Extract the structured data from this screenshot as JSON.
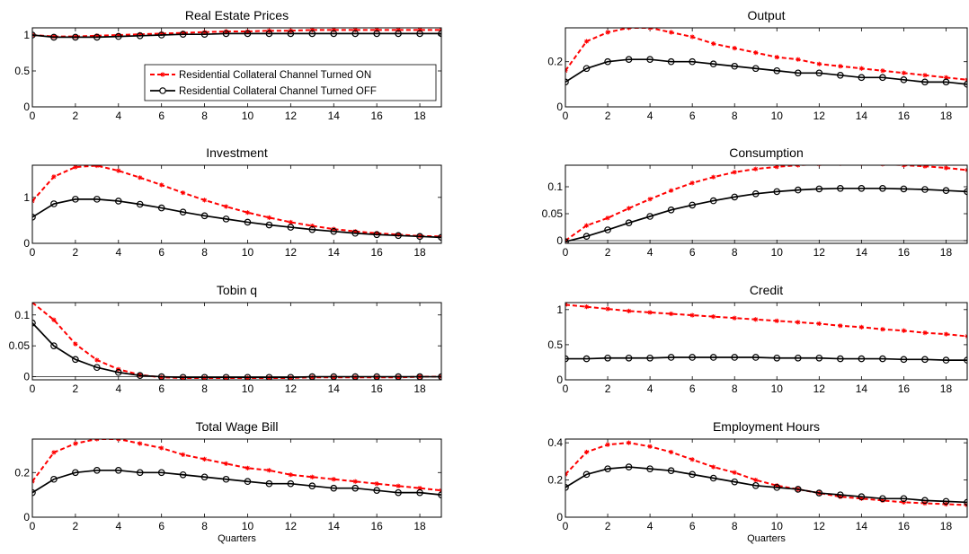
{
  "legend": {
    "on_label": "Residential Collateral Channel Turned ON",
    "off_label": "Residential Collateral Channel Turned OFF"
  },
  "colors": {
    "on": "#ff0000",
    "off": "#000000"
  },
  "chart_data": [
    {
      "type": "line",
      "title": "Real Estate Prices",
      "xlabel": "",
      "x": [
        0,
        1,
        2,
        3,
        4,
        5,
        6,
        7,
        8,
        9,
        10,
        11,
        12,
        13,
        14,
        15,
        16,
        17,
        18,
        19
      ],
      "xlim": [
        0,
        19
      ],
      "ylim": [
        0,
        1.1
      ],
      "xticks": [
        0,
        2,
        4,
        6,
        8,
        10,
        12,
        14,
        16,
        18
      ],
      "yticks": [
        0,
        0.5,
        1
      ],
      "ytick_labels": [
        "0",
        "0.5",
        "1"
      ],
      "legend": "inside bottom-right",
      "series": [
        {
          "name": "Residential Collateral Channel Turned ON",
          "style": "dashed-star",
          "values": [
            1.0,
            0.98,
            0.98,
            0.99,
            1.0,
            1.01,
            1.02,
            1.03,
            1.04,
            1.05,
            1.05,
            1.06,
            1.06,
            1.07,
            1.07,
            1.07,
            1.07,
            1.07,
            1.07,
            1.07
          ]
        },
        {
          "name": "Residential Collateral Channel Turned OFF",
          "style": "solid-circle",
          "values": [
            1.0,
            0.97,
            0.97,
            0.97,
            0.98,
            0.99,
            1.0,
            1.01,
            1.01,
            1.02,
            1.02,
            1.02,
            1.02,
            1.02,
            1.02,
            1.02,
            1.02,
            1.02,
            1.02,
            1.02
          ]
        }
      ]
    },
    {
      "type": "line",
      "title": "Output",
      "xlabel": "",
      "x": [
        0,
        1,
        2,
        3,
        4,
        5,
        6,
        7,
        8,
        9,
        10,
        11,
        12,
        13,
        14,
        15,
        16,
        17,
        18,
        19
      ],
      "xlim": [
        0,
        19
      ],
      "ylim": [
        0,
        0.35
      ],
      "xticks": [
        0,
        2,
        4,
        6,
        8,
        10,
        12,
        14,
        16,
        18
      ],
      "yticks": [
        0,
        0.2
      ],
      "ytick_labels": [
        "0",
        "0.2"
      ],
      "series": [
        {
          "name": "Residential Collateral Channel Turned ON",
          "style": "dashed-star",
          "values": [
            0.16,
            0.29,
            0.33,
            0.35,
            0.35,
            0.33,
            0.31,
            0.28,
            0.26,
            0.24,
            0.22,
            0.21,
            0.19,
            0.18,
            0.17,
            0.16,
            0.15,
            0.14,
            0.13,
            0.12
          ]
        },
        {
          "name": "Residential Collateral Channel Turned OFF",
          "style": "solid-circle",
          "values": [
            0.11,
            0.17,
            0.2,
            0.21,
            0.21,
            0.2,
            0.2,
            0.19,
            0.18,
            0.17,
            0.16,
            0.15,
            0.15,
            0.14,
            0.13,
            0.13,
            0.12,
            0.11,
            0.11,
            0.1
          ]
        }
      ]
    },
    {
      "type": "line",
      "title": "Investment",
      "xlabel": "",
      "x": [
        0,
        1,
        2,
        3,
        4,
        5,
        6,
        7,
        8,
        9,
        10,
        11,
        12,
        13,
        14,
        15,
        16,
        17,
        18,
        19
      ],
      "xlim": [
        0,
        19
      ],
      "ylim": [
        0,
        1.7
      ],
      "xticks": [
        0,
        2,
        4,
        6,
        8,
        10,
        12,
        14,
        16,
        18
      ],
      "yticks": [
        0,
        1
      ],
      "ytick_labels": [
        "0",
        "1"
      ],
      "series": [
        {
          "name": "Residential Collateral Channel Turned ON",
          "style": "dashed-star",
          "values": [
            0.92,
            1.45,
            1.66,
            1.69,
            1.58,
            1.43,
            1.27,
            1.1,
            0.94,
            0.8,
            0.67,
            0.56,
            0.46,
            0.38,
            0.31,
            0.26,
            0.22,
            0.19,
            0.16,
            0.15
          ]
        },
        {
          "name": "Residential Collateral Channel Turned OFF",
          "style": "solid-circle",
          "values": [
            0.57,
            0.86,
            0.96,
            0.96,
            0.92,
            0.85,
            0.77,
            0.68,
            0.6,
            0.53,
            0.46,
            0.4,
            0.35,
            0.3,
            0.26,
            0.22,
            0.19,
            0.17,
            0.15,
            0.13
          ]
        }
      ]
    },
    {
      "type": "line",
      "title": "Consumption",
      "xlabel": "",
      "x": [
        0,
        1,
        2,
        3,
        4,
        5,
        6,
        7,
        8,
        9,
        10,
        11,
        12,
        13,
        14,
        15,
        16,
        17,
        18,
        19
      ],
      "xlim": [
        0,
        19
      ],
      "ylim": [
        -0.005,
        0.14
      ],
      "xticks": [
        0,
        2,
        4,
        6,
        8,
        10,
        12,
        14,
        16,
        18
      ],
      "yticks": [
        0,
        0.05,
        0.1
      ],
      "ytick_labels": [
        "0",
        "0.05",
        "0.1"
      ],
      "zero_line": true,
      "series": [
        {
          "name": "Residential Collateral Channel Turned ON",
          "style": "dashed-star",
          "values": [
            0.0,
            0.028,
            0.042,
            0.06,
            0.077,
            0.093,
            0.107,
            0.118,
            0.127,
            0.133,
            0.137,
            0.14,
            0.142,
            0.143,
            0.143,
            0.142,
            0.14,
            0.138,
            0.135,
            0.131
          ]
        },
        {
          "name": "Residential Collateral Channel Turned OFF",
          "style": "solid-circle",
          "values": [
            -0.002,
            0.008,
            0.02,
            0.033,
            0.045,
            0.057,
            0.066,
            0.074,
            0.081,
            0.087,
            0.091,
            0.094,
            0.096,
            0.097,
            0.097,
            0.097,
            0.096,
            0.095,
            0.093,
            0.091
          ]
        }
      ]
    },
    {
      "type": "line",
      "title": "Tobin q",
      "xlabel": "",
      "x": [
        0,
        1,
        2,
        3,
        4,
        5,
        6,
        7,
        8,
        9,
        10,
        11,
        12,
        13,
        14,
        15,
        16,
        17,
        18,
        19
      ],
      "xlim": [
        0,
        19
      ],
      "ylim": [
        -0.005,
        0.12
      ],
      "xticks": [
        0,
        2,
        4,
        6,
        8,
        10,
        12,
        14,
        16,
        18
      ],
      "yticks": [
        0,
        0.05,
        0.1
      ],
      "ytick_labels": [
        "0",
        "0.05",
        "0.1"
      ],
      "zero_line": true,
      "series": [
        {
          "name": "Residential Collateral Channel Turned ON",
          "style": "dashed-star",
          "values": [
            0.12,
            0.092,
            0.053,
            0.027,
            0.012,
            0.003,
            -0.001,
            -0.002,
            -0.002,
            -0.002,
            -0.002,
            -0.002,
            -0.002,
            -0.001,
            -0.001,
            -0.001,
            -0.001,
            -0.001,
            0.0,
            0.0
          ]
        },
        {
          "name": "Residential Collateral Channel Turned OFF",
          "style": "solid-circle",
          "values": [
            0.087,
            0.05,
            0.028,
            0.015,
            0.007,
            0.002,
            0.0,
            -0.001,
            -0.001,
            -0.001,
            -0.001,
            -0.001,
            -0.001,
            0.0,
            0.0,
            0.0,
            0.0,
            0.0,
            0.0,
            0.0
          ]
        }
      ]
    },
    {
      "type": "line",
      "title": "Credit",
      "xlabel": "",
      "x": [
        0,
        1,
        2,
        3,
        4,
        5,
        6,
        7,
        8,
        9,
        10,
        11,
        12,
        13,
        14,
        15,
        16,
        17,
        18,
        19
      ],
      "xlim": [
        0,
        19
      ],
      "ylim": [
        0,
        1.1
      ],
      "xticks": [
        0,
        2,
        4,
        6,
        8,
        10,
        12,
        14,
        16,
        18
      ],
      "yticks": [
        0,
        0.5,
        1
      ],
      "ytick_labels": [
        "0",
        "0.5",
        "1"
      ],
      "series": [
        {
          "name": "Residential Collateral Channel Turned ON",
          "style": "dashed-star",
          "values": [
            1.07,
            1.04,
            1.01,
            0.98,
            0.96,
            0.94,
            0.92,
            0.9,
            0.88,
            0.86,
            0.84,
            0.82,
            0.8,
            0.77,
            0.75,
            0.72,
            0.7,
            0.67,
            0.65,
            0.62
          ]
        },
        {
          "name": "Residential Collateral Channel Turned OFF",
          "style": "solid-circle",
          "values": [
            0.3,
            0.3,
            0.31,
            0.31,
            0.31,
            0.32,
            0.32,
            0.32,
            0.32,
            0.32,
            0.31,
            0.31,
            0.31,
            0.3,
            0.3,
            0.3,
            0.29,
            0.29,
            0.28,
            0.28
          ]
        }
      ]
    },
    {
      "type": "line",
      "title": "Total Wage Bill",
      "xlabel": "Quarters",
      "x": [
        0,
        1,
        2,
        3,
        4,
        5,
        6,
        7,
        8,
        9,
        10,
        11,
        12,
        13,
        14,
        15,
        16,
        17,
        18,
        19
      ],
      "xlim": [
        0,
        19
      ],
      "ylim": [
        0,
        0.35
      ],
      "xticks": [
        0,
        2,
        4,
        6,
        8,
        10,
        12,
        14,
        16,
        18
      ],
      "yticks": [
        0,
        0.2
      ],
      "ytick_labels": [
        "0",
        "0.2"
      ],
      "series": [
        {
          "name": "Residential Collateral Channel Turned ON",
          "style": "dashed-star",
          "values": [
            0.16,
            0.29,
            0.33,
            0.35,
            0.35,
            0.33,
            0.31,
            0.28,
            0.26,
            0.24,
            0.22,
            0.21,
            0.19,
            0.18,
            0.17,
            0.16,
            0.15,
            0.14,
            0.13,
            0.12
          ]
        },
        {
          "name": "Residential Collateral Channel Turned OFF",
          "style": "solid-circle",
          "values": [
            0.11,
            0.17,
            0.2,
            0.21,
            0.21,
            0.2,
            0.2,
            0.19,
            0.18,
            0.17,
            0.16,
            0.15,
            0.15,
            0.14,
            0.13,
            0.13,
            0.12,
            0.11,
            0.11,
            0.1
          ]
        }
      ]
    },
    {
      "type": "line",
      "title": "Employment Hours",
      "xlabel": "Quarters",
      "x": [
        0,
        1,
        2,
        3,
        4,
        5,
        6,
        7,
        8,
        9,
        10,
        11,
        12,
        13,
        14,
        15,
        16,
        17,
        18,
        19
      ],
      "xlim": [
        0,
        19
      ],
      "ylim": [
        0,
        0.42
      ],
      "xticks": [
        0,
        2,
        4,
        6,
        8,
        10,
        12,
        14,
        16,
        18
      ],
      "yticks": [
        0,
        0.2,
        0.4
      ],
      "ytick_labels": [
        "0",
        "0.2",
        "0.4"
      ],
      "series": [
        {
          "name": "Residential Collateral Channel Turned ON",
          "style": "dashed-star",
          "values": [
            0.23,
            0.35,
            0.39,
            0.4,
            0.38,
            0.35,
            0.31,
            0.27,
            0.24,
            0.2,
            0.17,
            0.15,
            0.13,
            0.11,
            0.1,
            0.09,
            0.08,
            0.075,
            0.07,
            0.065
          ]
        },
        {
          "name": "Residential Collateral Channel Turned OFF",
          "style": "solid-circle",
          "values": [
            0.16,
            0.23,
            0.26,
            0.27,
            0.26,
            0.25,
            0.23,
            0.21,
            0.19,
            0.17,
            0.16,
            0.15,
            0.13,
            0.12,
            0.11,
            0.1,
            0.1,
            0.09,
            0.085,
            0.08
          ]
        }
      ]
    }
  ]
}
